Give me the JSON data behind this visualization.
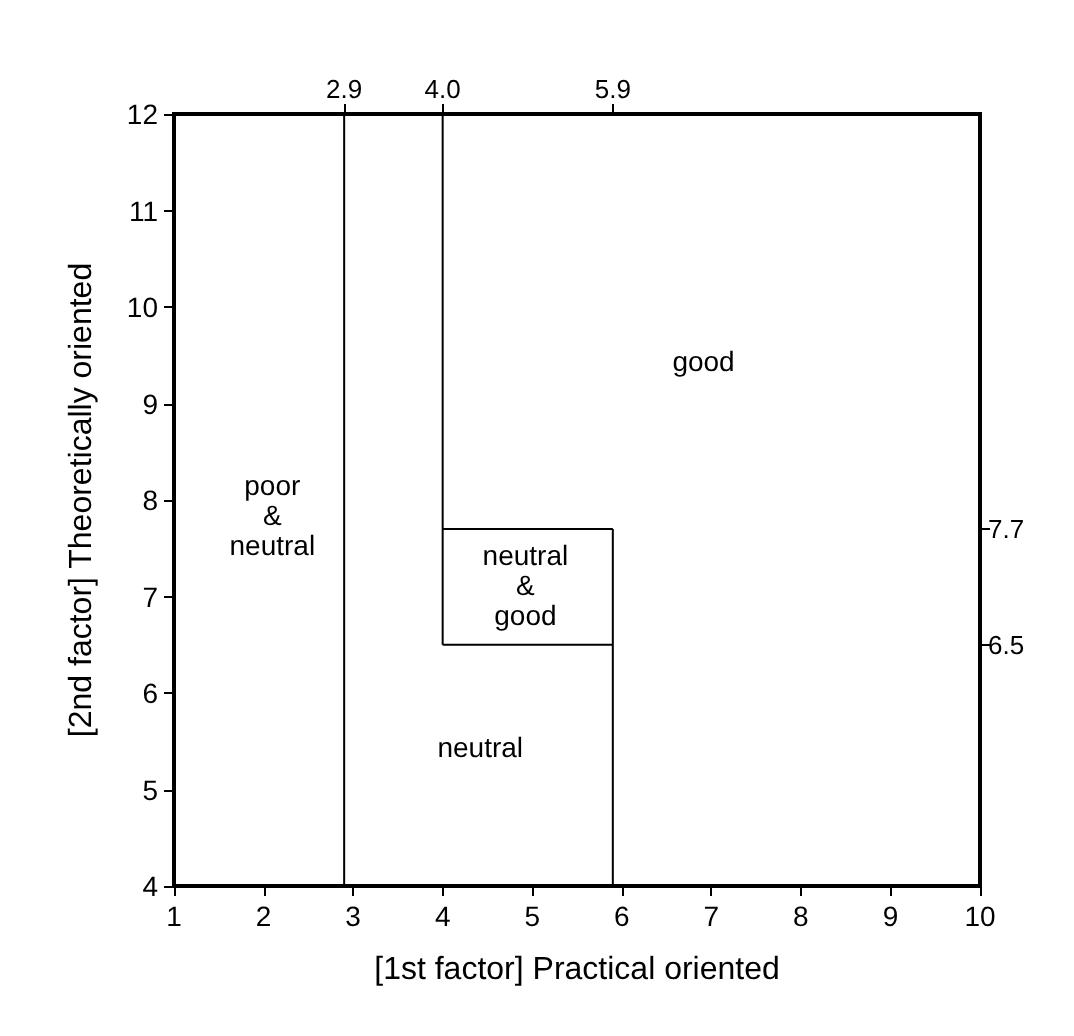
{
  "chart_data": {
    "type": "line",
    "xlabel": "[1st factor] Practical oriented",
    "ylabel": "[2nd factor] Theoretically oriented",
    "xlim": [
      1,
      10
    ],
    "xticks": [
      1,
      2,
      3,
      4,
      5,
      6,
      7,
      8,
      9,
      10
    ],
    "ylim": [
      4,
      12
    ],
    "yticks": [
      4,
      5,
      6,
      7,
      8,
      9,
      10,
      11,
      12
    ],
    "x2lim": [
      1,
      10
    ],
    "x2ticks": [
      2.9,
      {
        "value": 4,
        "label": "4.0"
      },
      5.9
    ],
    "y2lim": [
      4,
      12
    ],
    "y2ticks": [
      6.5,
      7.7
    ],
    "grid": false,
    "marker": "none",
    "line_style": "solid",
    "series": [
      {
        "color": "#000000",
        "x": [
          2.9,
          2.9
        ],
        "values": [
          4,
          12
        ]
      },
      {
        "color": "#000000",
        "x": [
          4,
          4
        ],
        "values": [
          6.5,
          12
        ]
      },
      {
        "color": "#000000",
        "x": [
          5.9,
          5.9
        ],
        "values": [
          4,
          7.7
        ]
      },
      {
        "color": "#000000",
        "x": [
          4,
          5.9
        ],
        "values": [
          6.5,
          6.5
        ]
      },
      {
        "color": "#000000",
        "x": [
          4,
          5.9
        ],
        "values": [
          7.7,
          7.7
        ]
      }
    ],
    "annotations": [
      "poor\n&\nneutral",
      "neutral\n&\ngood",
      "good",
      "neutral"
    ]
  }
}
